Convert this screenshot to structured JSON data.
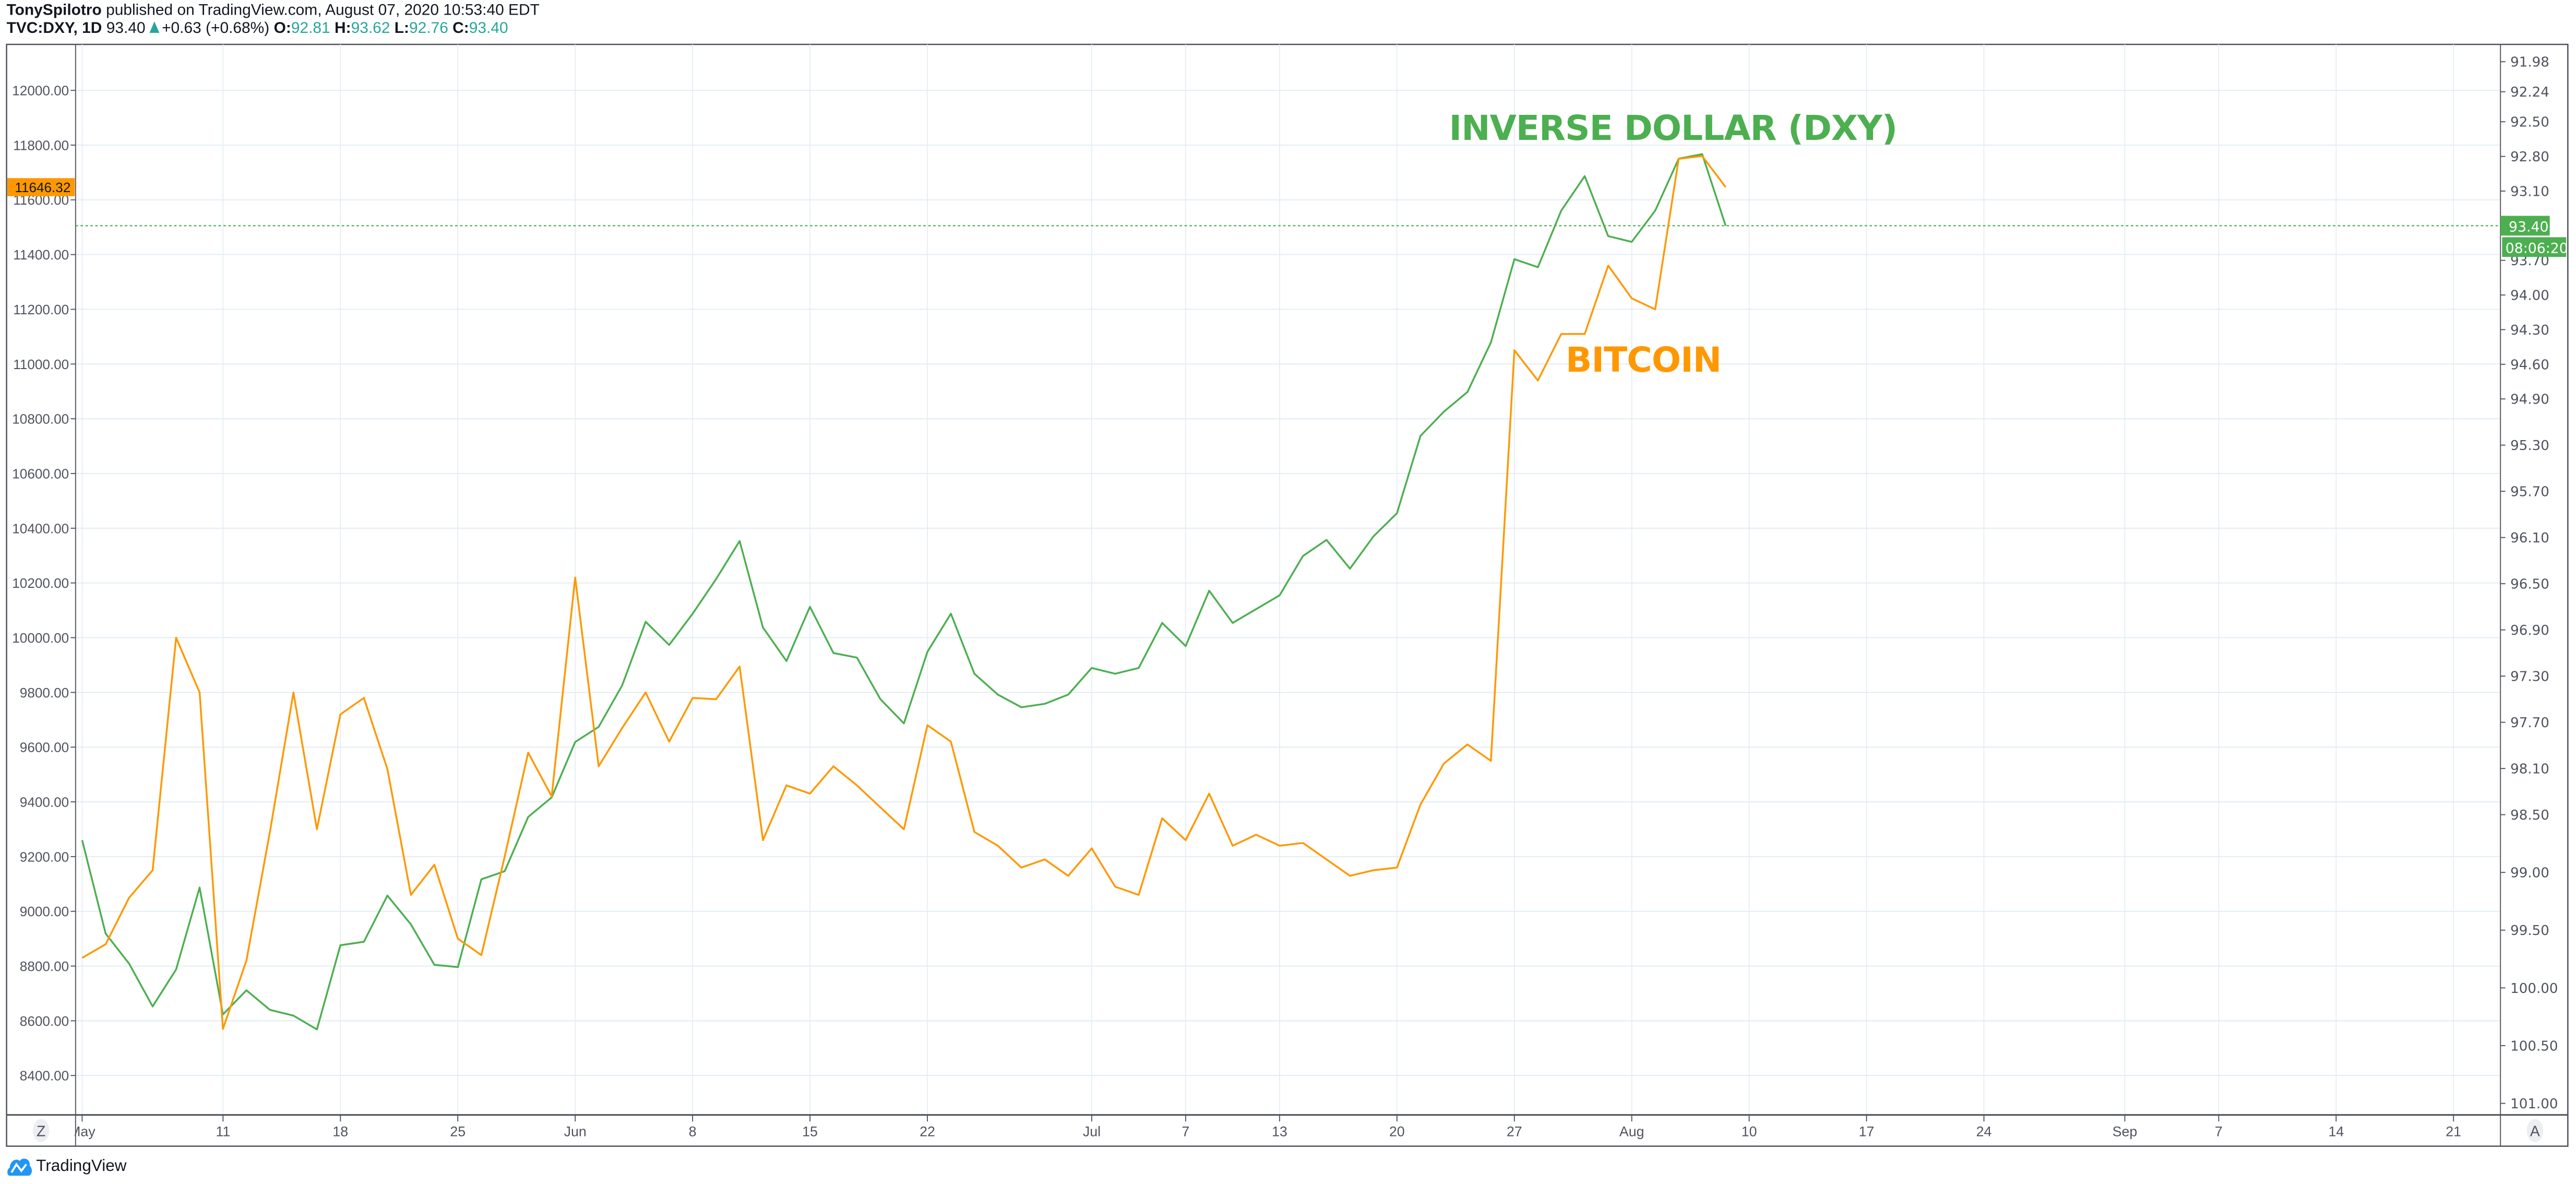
{
  "header": {
    "author": "TonySpilotro",
    "published": "published on TradingView.com, August 07, 2020 10:53:40 EDT",
    "symbol": "TVC:DXY, 1D",
    "price": "93.40",
    "change": "+0.63 (+0.68%)",
    "o_label": "O:",
    "o": "92.81",
    "h_label": "H:",
    "h": "93.62",
    "l_label": "L:",
    "l": "92.76",
    "c_label": "C:",
    "c": "93.40"
  },
  "footer": {
    "logo_text": "TradingView"
  },
  "axis_buttons": {
    "left": "Z",
    "right": "A"
  },
  "colors": {
    "dxy": "#4caf50",
    "bitcoin": "#ff9800",
    "grid": "#e1ecf2",
    "axis": "#50535e",
    "up": "#26a69a"
  },
  "chart_data": {
    "type": "line",
    "title": "",
    "annotations": [
      {
        "text": "INVERSE DOLLAR (DXY)",
        "color": "#4caf50"
      },
      {
        "text": "BITCOIN",
        "color": "#ff9800"
      }
    ],
    "x": [
      "2020-05-01",
      "2020-05-04",
      "2020-05-05",
      "2020-05-06",
      "2020-05-07",
      "2020-05-08",
      "2020-05-11",
      "2020-05-12",
      "2020-05-13",
      "2020-05-14",
      "2020-05-15",
      "2020-05-18",
      "2020-05-19",
      "2020-05-20",
      "2020-05-21",
      "2020-05-22",
      "2020-05-25",
      "2020-05-26",
      "2020-05-27",
      "2020-05-28",
      "2020-05-29",
      "2020-06-01",
      "2020-06-02",
      "2020-06-03",
      "2020-06-04",
      "2020-06-05",
      "2020-06-08",
      "2020-06-09",
      "2020-06-10",
      "2020-06-11",
      "2020-06-12",
      "2020-06-15",
      "2020-06-16",
      "2020-06-17",
      "2020-06-18",
      "2020-06-19",
      "2020-06-22",
      "2020-06-23",
      "2020-06-24",
      "2020-06-25",
      "2020-06-26",
      "2020-06-29",
      "2020-06-30",
      "2020-07-01",
      "2020-07-02",
      "2020-07-03",
      "2020-07-06",
      "2020-07-07",
      "2020-07-08",
      "2020-07-09",
      "2020-07-10",
      "2020-07-13",
      "2020-07-14",
      "2020-07-15",
      "2020-07-16",
      "2020-07-17",
      "2020-07-20",
      "2020-07-21",
      "2020-07-22",
      "2020-07-23",
      "2020-07-24",
      "2020-07-27",
      "2020-07-28",
      "2020-07-29",
      "2020-07-30",
      "2020-07-31",
      "2020-08-03",
      "2020-08-04",
      "2020-08-05",
      "2020-08-06",
      "2020-08-07"
    ],
    "xlim": [
      "2020-05-01",
      "2020-09-23"
    ],
    "x_ticks": [
      {
        "date": "2020-05-01",
        "label": "May"
      },
      {
        "date": "2020-05-11",
        "label": "11"
      },
      {
        "date": "2020-05-18",
        "label": "18"
      },
      {
        "date": "2020-05-25",
        "label": "25"
      },
      {
        "date": "2020-06-01",
        "label": "Jun"
      },
      {
        "date": "2020-06-08",
        "label": "8"
      },
      {
        "date": "2020-06-15",
        "label": "15"
      },
      {
        "date": "2020-06-22",
        "label": "22"
      },
      {
        "date": "2020-07-01",
        "label": "Jul"
      },
      {
        "date": "2020-07-07",
        "label": "7"
      },
      {
        "date": "2020-07-13",
        "label": "13"
      },
      {
        "date": "2020-07-20",
        "label": "20"
      },
      {
        "date": "2020-07-27",
        "label": "27"
      },
      {
        "date": "2020-08-03",
        "label": "Aug"
      },
      {
        "date": "2020-08-10",
        "label": "10"
      },
      {
        "date": "2020-08-17",
        "label": "17"
      },
      {
        "date": "2020-08-24",
        "label": "24"
      },
      {
        "date": "2020-09-01",
        "label": "Sep"
      },
      {
        "date": "2020-09-07",
        "label": "7"
      },
      {
        "date": "2020-09-14",
        "label": "14"
      },
      {
        "date": "2020-09-21",
        "label": "21"
      }
    ],
    "left_axis": {
      "ylim": [
        8256,
        12168
      ],
      "ticks": [
        "8400.00",
        "8600.00",
        "8800.00",
        "9000.00",
        "9200.00",
        "9400.00",
        "9600.00",
        "9800.00",
        "10000.00",
        "10200.00",
        "10400.00",
        "10600.00",
        "10800.00",
        "11000.00",
        "11200.00",
        "11400.00",
        "11600.00",
        "11800.00",
        "12000.00"
      ],
      "last_value_label": "11646.32"
    },
    "right_axis": {
      "ylim": [
        101.1,
        91.83
      ],
      "inverted": true,
      "ticks": [
        "91.98",
        "92.24",
        "92.50",
        "92.80",
        "93.10",
        "93.70",
        "94.00",
        "94.30",
        "94.60",
        "94.90",
        "95.30",
        "95.70",
        "96.10",
        "96.50",
        "96.90",
        "97.30",
        "97.70",
        "98.10",
        "98.50",
        "99.00",
        "99.50",
        "100.00",
        "100.50",
        "101.00"
      ],
      "last_value_label": "93.40",
      "countdown": "08:06:20"
    },
    "grid": true,
    "series": [
      {
        "axis": "right",
        "color": "#4caf50",
        "values": [
          98.72,
          99.53,
          99.79,
          100.16,
          99.84,
          99.13,
          100.23,
          100.02,
          100.19,
          100.24,
          100.36,
          99.63,
          99.6,
          99.2,
          99.45,
          99.8,
          99.82,
          99.06,
          98.99,
          98.52,
          98.35,
          97.87,
          97.74,
          97.38,
          96.83,
          97.03,
          96.76,
          96.46,
          96.13,
          96.88,
          97.17,
          96.7,
          97.1,
          97.14,
          97.5,
          97.71,
          97.09,
          96.76,
          97.28,
          97.46,
          97.57,
          97.54,
          97.46,
          97.23,
          97.28,
          97.23,
          96.84,
          97.04,
          96.56,
          96.84,
          96.72,
          96.6,
          96.26,
          96.12,
          96.37,
          96.09,
          95.89,
          95.22,
          95.01,
          94.84,
          94.41,
          93.69,
          93.76,
          93.27,
          92.97,
          93.49,
          93.54,
          93.27,
          92.82,
          92.78,
          93.4
        ]
      },
      {
        "axis": "left",
        "color": "#ff9800",
        "values": [
          8830,
          8880,
          9050,
          9150,
          10000,
          9800,
          8570,
          8820,
          9290,
          9800,
          9300,
          9720,
          9780,
          9520,
          9060,
          9170,
          8900,
          8840,
          9200,
          9580,
          9420,
          10220,
          9530,
          9670,
          9800,
          9620,
          9780,
          9775,
          9895,
          9260,
          9460,
          9430,
          9530,
          9460,
          9380,
          9300,
          9680,
          9620,
          9290,
          9240,
          9160,
          9190,
          9130,
          9230,
          9090,
          9060,
          9340,
          9260,
          9430,
          9240,
          9280,
          9240,
          9250,
          9190,
          9130,
          9150,
          9160,
          9390,
          9540,
          9610,
          9550,
          11050,
          10940,
          11110,
          11110,
          11360,
          11240,
          11200,
          11750,
          11760,
          11646.32
        ]
      }
    ]
  }
}
